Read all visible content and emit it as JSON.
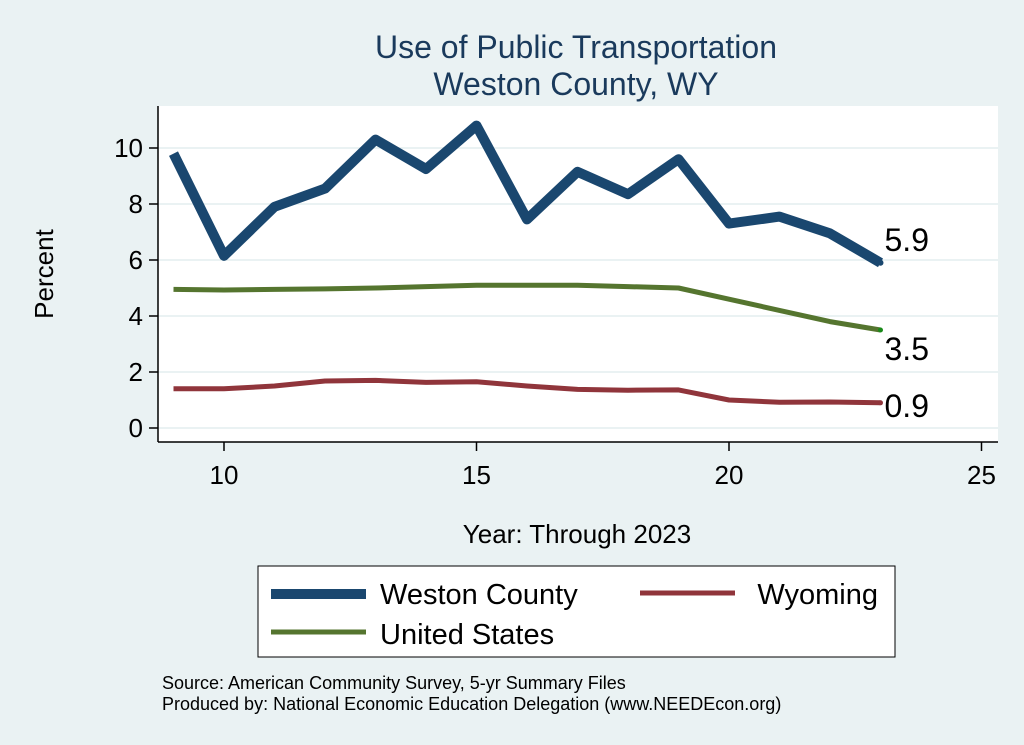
{
  "chart_data": {
    "type": "line",
    "title": "Use of Public Transportation",
    "subtitle": "Weston County, WY",
    "xlabel": "Year: Through 2023",
    "ylabel": "Percent",
    "xlim": [
      9,
      25
    ],
    "ylim": [
      0,
      11
    ],
    "x_ticks": [
      10,
      15,
      20,
      25
    ],
    "y_ticks": [
      0,
      2,
      4,
      6,
      8,
      10
    ],
    "x": [
      9,
      10,
      11,
      12,
      13,
      14,
      15,
      16,
      17,
      18,
      19,
      20,
      21,
      22,
      23
    ],
    "grid": true,
    "legend_position": "bottom",
    "series": [
      {
        "name": "Weston County",
        "color": "#1a476f",
        "values": [
          9.8,
          6.15,
          7.9,
          8.55,
          10.3,
          9.25,
          10.8,
          7.45,
          9.15,
          8.35,
          9.6,
          7.3,
          7.55,
          6.95,
          5.9
        ],
        "end_label": "5.9"
      },
      {
        "name": "Wyoming",
        "color": "#90353b",
        "values": [
          1.4,
          1.4,
          1.5,
          1.68,
          1.7,
          1.63,
          1.65,
          1.5,
          1.38,
          1.35,
          1.36,
          1.0,
          0.92,
          0.93,
          0.9
        ],
        "end_label": "0.9"
      },
      {
        "name": "United States",
        "color": "#55752f",
        "values": [
          4.95,
          4.93,
          4.95,
          4.97,
          5.0,
          5.05,
          5.1,
          5.1,
          5.1,
          5.05,
          5.0,
          4.6,
          4.2,
          3.8,
          3.5
        ],
        "end_label": "3.5"
      }
    ],
    "legend_order": [
      "Weston County",
      "Wyoming",
      "United States"
    ],
    "notes": [
      "Source: American Community Survey, 5-yr Summary Files",
      "Produced by: National Economic Education Delegation (www.NEEDEcon.org)"
    ]
  }
}
